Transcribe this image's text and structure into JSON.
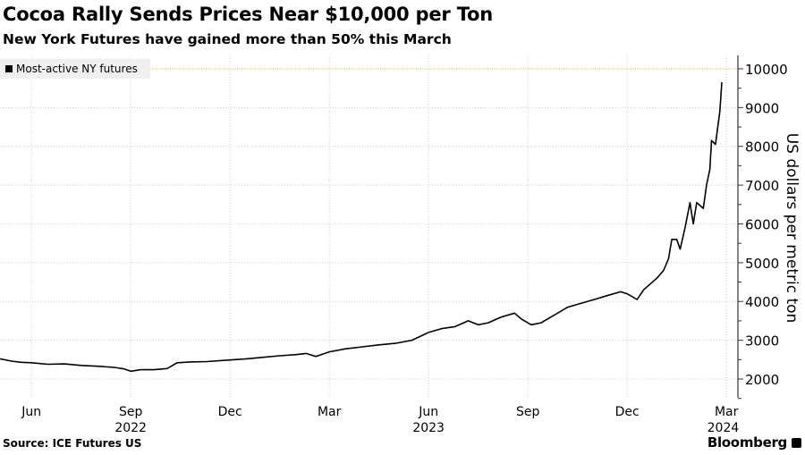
{
  "chart_data": {
    "type": "line",
    "title": "Cocoa Rally Sends Prices Near $10,000 per Ton",
    "subtitle": "New York Futures have gained more than 50% this March",
    "ylabel": "US dollars per metric ton",
    "xlabel": "",
    "x_unit": "months since Jun 2022",
    "xlim": [
      -0.95,
      21.4
    ],
    "ylim": [
      1500,
      10400
    ],
    "yticks": [
      2000,
      3000,
      4000,
      5000,
      6000,
      7000,
      8000,
      9000,
      10000
    ],
    "xticks": [
      {
        "at": 0,
        "label": "Jun"
      },
      {
        "at": 3,
        "label": "Sep"
      },
      {
        "at": 6,
        "label": "Dec"
      },
      {
        "at": 9,
        "label": "Mar"
      },
      {
        "at": 12,
        "label": "Jun"
      },
      {
        "at": 15,
        "label": "Sep"
      },
      {
        "at": 18,
        "label": "Dec"
      },
      {
        "at": 21,
        "label": "Mar"
      }
    ],
    "year_labels": [
      {
        "at": 3,
        "label": "2022"
      },
      {
        "at": 12,
        "label": "2023"
      },
      {
        "at": 20.9,
        "label": "2024"
      }
    ],
    "reference_line": {
      "value": 10000,
      "color": "#f0b429"
    },
    "grid": true,
    "legend": {
      "position": "top-left",
      "entries": [
        "Most-active NY futures"
      ]
    },
    "series": [
      {
        "name": "Most-active NY futures",
        "color": "#000000",
        "points": [
          [
            -0.95,
            2520
          ],
          [
            -0.6,
            2460
          ],
          [
            -0.3,
            2430
          ],
          [
            0,
            2420
          ],
          [
            0.5,
            2380
          ],
          [
            1,
            2390
          ],
          [
            1.5,
            2350
          ],
          [
            2,
            2330
          ],
          [
            2.5,
            2300
          ],
          [
            2.8,
            2260
          ],
          [
            3,
            2200
          ],
          [
            3.3,
            2240
          ],
          [
            3.7,
            2240
          ],
          [
            4.1,
            2270
          ],
          [
            4.4,
            2420
          ],
          [
            4.8,
            2440
          ],
          [
            5.3,
            2450
          ],
          [
            6,
            2490
          ],
          [
            6.5,
            2520
          ],
          [
            7,
            2560
          ],
          [
            7.5,
            2600
          ],
          [
            8,
            2630
          ],
          [
            8.3,
            2660
          ],
          [
            8.6,
            2580
          ],
          [
            9,
            2700
          ],
          [
            9.5,
            2780
          ],
          [
            10,
            2830
          ],
          [
            10.5,
            2880
          ],
          [
            11,
            2920
          ],
          [
            11.5,
            3000
          ],
          [
            12,
            3200
          ],
          [
            12.4,
            3300
          ],
          [
            12.8,
            3350
          ],
          [
            13.2,
            3500
          ],
          [
            13.5,
            3400
          ],
          [
            13.8,
            3450
          ],
          [
            14.2,
            3600
          ],
          [
            14.6,
            3700
          ],
          [
            14.8,
            3550
          ],
          [
            15.1,
            3400
          ],
          [
            15.4,
            3450
          ],
          [
            15.8,
            3650
          ],
          [
            16.2,
            3850
          ],
          [
            16.6,
            3950
          ],
          [
            17,
            4050
          ],
          [
            17.4,
            4150
          ],
          [
            17.8,
            4250
          ],
          [
            18,
            4200
          ],
          [
            18.3,
            4050
          ],
          [
            18.5,
            4300
          ],
          [
            18.7,
            4450
          ],
          [
            18.9,
            4600
          ],
          [
            19.1,
            4800
          ],
          [
            19.25,
            5100
          ],
          [
            19.35,
            5600
          ],
          [
            19.5,
            5600
          ],
          [
            19.6,
            5350
          ],
          [
            19.75,
            5900
          ],
          [
            19.9,
            6550
          ],
          [
            20.0,
            6000
          ],
          [
            20.1,
            6550
          ],
          [
            20.3,
            6400
          ],
          [
            20.4,
            7000
          ],
          [
            20.5,
            7400
          ],
          [
            20.55,
            8150
          ],
          [
            20.67,
            8050
          ],
          [
            20.8,
            8900
          ],
          [
            20.86,
            9650
          ]
        ]
      }
    ]
  },
  "source": "Source: ICE Futures US",
  "brand": "Bloomberg"
}
